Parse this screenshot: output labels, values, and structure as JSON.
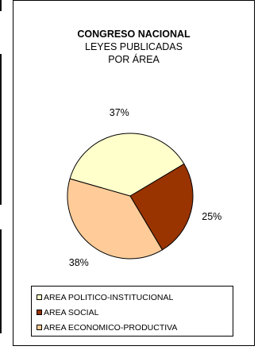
{
  "chart_data": {
    "type": "pie",
    "title": "CONGRESO NACIONAL",
    "subtitle": [
      "LEYES PUBLICADAS",
      "POR ÁREA"
    ],
    "slices": [
      {
        "name": "AREA POLITICO-INSTITUCIONAL",
        "value": 37,
        "label": "37%",
        "color": "#ffffcc"
      },
      {
        "name": "AREA SOCIAL",
        "value": 25,
        "label": "25%",
        "color": "#993300"
      },
      {
        "name": "AREA ECONOMICO-PRODUCTIVA",
        "value": 38,
        "label": "38%",
        "color": "#ffcc99"
      }
    ],
    "start_angle_deg": 286,
    "legend_position": "bottom"
  }
}
